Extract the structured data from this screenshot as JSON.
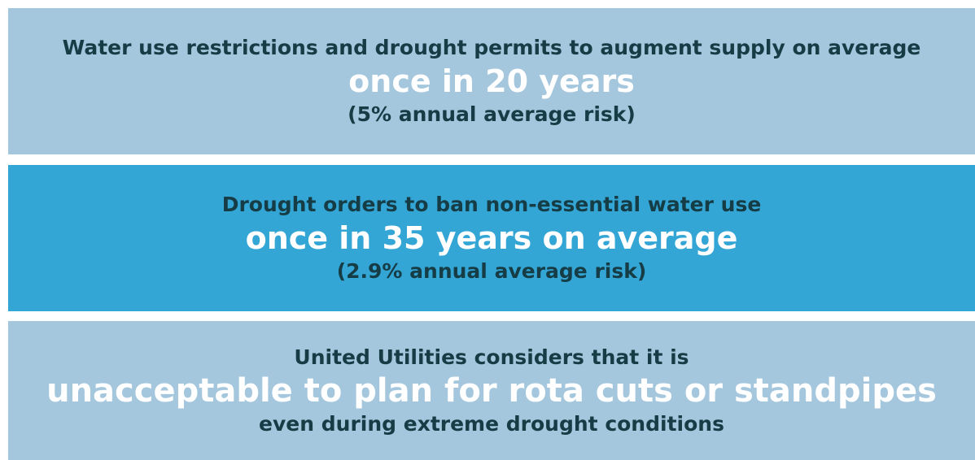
{
  "panels": [
    {
      "line1": "Water use restrictions and drought permits to augment supply on average",
      "highlight": "once in 20 years",
      "line3": "(5% annual average risk)"
    },
    {
      "line1": "Drought orders to ban non-essential water use",
      "highlight": "once in 35 years on average",
      "line3": "(2.9% annual average risk)"
    },
    {
      "line1": "United Utilities considers that it is",
      "highlight": "unacceptable to plan for rota cuts or standpipes",
      "line3": "even during extreme drought conditions"
    }
  ]
}
